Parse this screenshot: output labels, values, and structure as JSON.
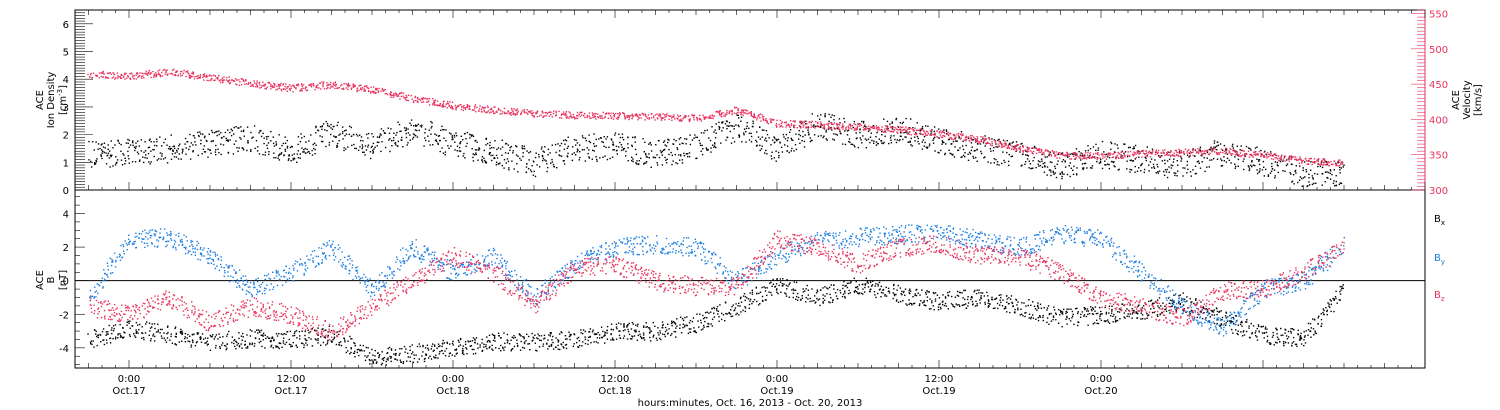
{
  "chart_data": [
    {
      "type": "scatter",
      "panel": "top",
      "ylabel_lines": [
        "ACE",
        "Ion Density"
      ],
      "yunit_prefix": "[cm",
      "yunit_exp": "-3",
      "yunit_suffix": "]",
      "y2label_lines": [
        "ACE",
        "Velocity",
        "[km/s]"
      ],
      "ylim": [
        0,
        6.5
      ],
      "y2lim": [
        300,
        555
      ],
      "yticks": [
        "0",
        "1",
        "2",
        "3",
        "4",
        "5",
        "6"
      ],
      "y2ticks": [
        "300",
        "350",
        "400",
        "450",
        "500",
        "550"
      ],
      "colors": {
        "density": "#000000",
        "velocity": "#e8335e"
      },
      "series": [
        {
          "key": "density",
          "axis": "left",
          "x": [
            -3,
            0,
            3,
            6,
            9,
            12,
            15,
            18,
            21,
            24,
            27,
            30,
            33,
            36,
            39,
            42,
            45,
            48,
            51,
            54,
            57,
            60,
            63,
            66,
            69,
            72,
            75,
            78,
            81,
            84,
            87,
            90
          ],
          "values": [
            1.3,
            1.4,
            1.5,
            1.7,
            1.9,
            1.4,
            2.1,
            1.6,
            2.2,
            1.7,
            1.4,
            1.0,
            1.5,
            1.6,
            1.3,
            1.6,
            2.3,
            1.5,
            2.4,
            2.0,
            2.2,
            1.8,
            1.5,
            1.3,
            0.9,
            1.3,
            1.1,
            0.9,
            1.4,
            1.0,
            0.6,
            0.7
          ]
        },
        {
          "key": "velocity",
          "axis": "right",
          "x": [
            -3,
            0,
            3,
            6,
            9,
            12,
            15,
            18,
            21,
            24,
            27,
            30,
            33,
            36,
            39,
            42,
            45,
            48,
            51,
            54,
            57,
            60,
            63,
            66,
            69,
            72,
            75,
            78,
            81,
            84,
            87,
            90
          ],
          "values": [
            465,
            462,
            468,
            460,
            452,
            445,
            450,
            443,
            430,
            420,
            414,
            409,
            407,
            406,
            405,
            402,
            414,
            395,
            393,
            390,
            386,
            380,
            372,
            360,
            350,
            349,
            352,
            354,
            356,
            350,
            342,
            338
          ]
        }
      ]
    },
    {
      "type": "scatter",
      "panel": "bottom",
      "ylabel_lines": [
        "ACE"
      ],
      "yb_main": "B",
      "yunit": "[nT]",
      "ylim": [
        -5.2,
        5.4
      ],
      "yticks": [
        "-4",
        "-2",
        "0",
        "2",
        "4"
      ],
      "colors": {
        "bx": "#000000",
        "by": "#1e7fe0",
        "bz": "#e8335e"
      },
      "legend": [
        {
          "key": "bx",
          "main": "B",
          "sub": "x"
        },
        {
          "key": "by",
          "main": "B",
          "sub": "y"
        },
        {
          "key": "bz",
          "main": "B",
          "sub": "z"
        }
      ],
      "series": [
        {
          "key": "bx",
          "x": [
            -3,
            0,
            3,
            6,
            9,
            12,
            15,
            18,
            21,
            24,
            27,
            30,
            33,
            36,
            39,
            42,
            45,
            48,
            51,
            54,
            57,
            60,
            63,
            66,
            69,
            72,
            75,
            78,
            81,
            84,
            87,
            90
          ],
          "values": [
            -3.5,
            -2.8,
            -3.2,
            -3.6,
            -3.4,
            -3.5,
            -3.2,
            -4.6,
            -4.3,
            -4.0,
            -3.6,
            -3.6,
            -3.5,
            -3.0,
            -3.0,
            -2.5,
            -1.5,
            -0.2,
            -1.0,
            -0.2,
            -0.8,
            -1.2,
            -1.0,
            -1.5,
            -2.2,
            -2.0,
            -1.8,
            -1.2,
            -2.3,
            -3.2,
            -3.4,
            -0.5
          ]
        },
        {
          "key": "by",
          "x": [
            -3,
            0,
            3,
            6,
            9,
            12,
            15,
            18,
            21,
            24,
            27,
            30,
            33,
            36,
            39,
            42,
            45,
            48,
            51,
            54,
            57,
            60,
            63,
            66,
            69,
            72,
            75,
            78,
            81,
            84,
            87,
            90
          ],
          "values": [
            -1.0,
            2.5,
            2.6,
            1.5,
            -0.5,
            0.5,
            2.0,
            -0.5,
            2.0,
            0.5,
            1.5,
            -1.0,
            1.0,
            2.0,
            2.2,
            2.0,
            0.0,
            1.5,
            2.4,
            2.6,
            2.8,
            2.9,
            2.5,
            2.0,
            2.8,
            2.5,
            0.5,
            -1.5,
            -2.8,
            -0.5,
            0.0,
            2.2
          ]
        },
        {
          "key": "bz",
          "x": [
            -3,
            0,
            3,
            6,
            9,
            12,
            15,
            18,
            21,
            24,
            27,
            30,
            33,
            36,
            39,
            42,
            45,
            48,
            51,
            54,
            57,
            60,
            63,
            66,
            69,
            72,
            75,
            78,
            81,
            84,
            87,
            90
          ],
          "values": [
            -1.5,
            -2.0,
            -1.0,
            -2.5,
            -1.5,
            -2.0,
            -3.0,
            -1.5,
            0.0,
            1.5,
            0.5,
            -1.5,
            0.8,
            1.0,
            0.0,
            -0.3,
            -0.3,
            2.5,
            2.0,
            1.0,
            2.0,
            2.2,
            1.5,
            1.5,
            0.5,
            -1.0,
            -1.5,
            -2.2,
            -0.6,
            -0.5,
            0.5,
            2.0
          ]
        }
      ]
    }
  ],
  "x_axis": {
    "xlim": [
      -4,
      96
    ],
    "ticks": [
      {
        "x": 0,
        "time": "0:00",
        "date": "Oct.17"
      },
      {
        "x": 12,
        "time": "12:00",
        "date": "Oct.17"
      },
      {
        "x": 24,
        "time": "0:00",
        "date": "Oct.18"
      },
      {
        "x": 36,
        "time": "12:00",
        "date": "Oct.18"
      },
      {
        "x": 48,
        "time": "0:00",
        "date": "Oct.19"
      },
      {
        "x": 60,
        "time": "12:00",
        "date": "Oct.19"
      },
      {
        "x": 72,
        "time": "0:00",
        "date": "Oct.20"
      }
    ],
    "label": "hours:minutes, Oct. 16, 2013 - Oct. 20, 2013"
  }
}
